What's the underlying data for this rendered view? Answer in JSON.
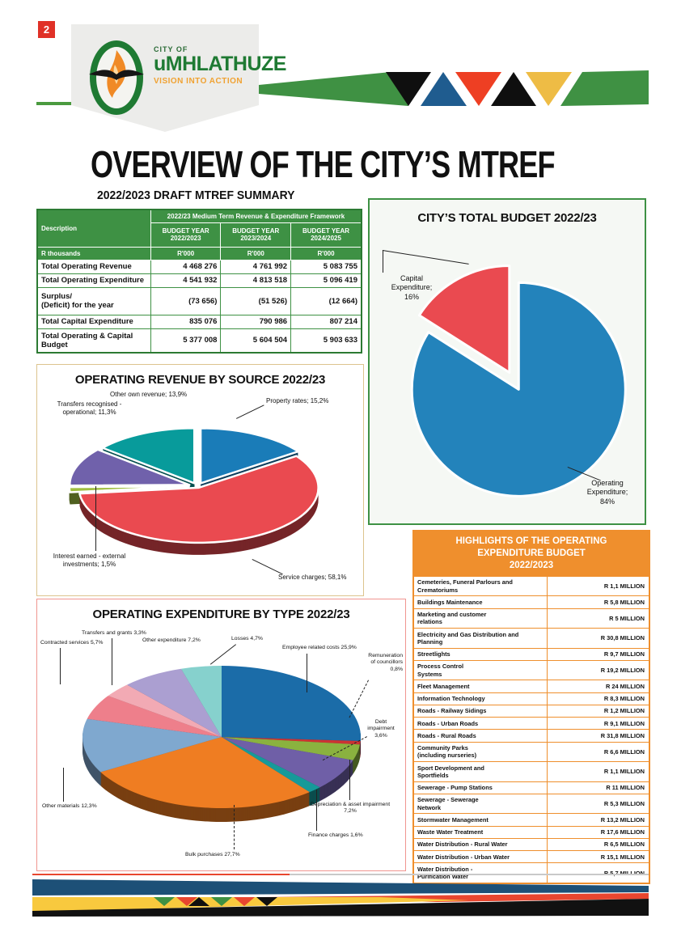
{
  "page": {
    "number": "2"
  },
  "logo": {
    "city_of": "CITY OF",
    "name": "uMHLATHUZE",
    "tagline": "VISION INTO ACTION"
  },
  "title": "OVERVIEW OF THE CITY’S MTREF",
  "summary_table": {
    "title": "2022/2023 DRAFT MTREF SUMMARY",
    "description_label": "Description",
    "unit_row_label": "R thousands",
    "group_header": "2022/23 Medium Term Revenue & Expenditure Framework",
    "columns": [
      {
        "header": "BUDGET YEAR\n2022/2023",
        "unit": "R'000"
      },
      {
        "header": "BUDGET YEAR\n2023/2024",
        "unit": "R'000"
      },
      {
        "header": "BUDGET YEAR\n2024/2025",
        "unit": "R'000"
      }
    ],
    "rows": [
      {
        "label": "Total Operating Revenue",
        "values": [
          "4 468 276",
          "4 761 992",
          "5 083 755"
        ]
      },
      {
        "label": "Total Operating Expenditure",
        "values": [
          "4 541 932",
          "4 813 518",
          "5 096 419"
        ]
      },
      {
        "label": "Surplus/\n(Deficit) for the year",
        "values": [
          "(73 656)",
          "(51 526)",
          "(12 664)"
        ]
      },
      {
        "label": "Total Capital Expenditure",
        "values": [
          "835 076",
          "790 986",
          "807 214"
        ]
      },
      {
        "label": "Total  Operating & Capital\nBudget",
        "values": [
          "5 377 008",
          "5 604 504",
          "5 903 633"
        ]
      }
    ]
  },
  "chart_data": [
    {
      "type": "pie",
      "title": "CITY’S TOTAL BUDGET 2022/23",
      "legend_position": "callout-labels",
      "slices": [
        {
          "name": "Operating Expenditure",
          "value": 84,
          "color": "#2383bb",
          "explode": 0.02,
          "label": "Operating\nExpenditure;\n84%"
        },
        {
          "name": "Capital Expenditure",
          "value": 16,
          "color": "#ea4a50",
          "explode": 0.16,
          "label": "Capital\nExpenditure;\n16%"
        }
      ]
    },
    {
      "type": "pie",
      "title": "OPERATING REVENUE BY SOURCE 2022/23",
      "legend_position": "callout-labels",
      "slices": [
        {
          "name": "Property rates",
          "value": 15.2,
          "color": "#1a7cb8",
          "explode": 0.06,
          "label": "Property rates; 15,2%"
        },
        {
          "name": "Service charges",
          "value": 58.1,
          "color": "#ea4a50",
          "explode": 0.03,
          "label": "Service charges; 58,1%"
        },
        {
          "name": "Interest earned - external investments",
          "value": 1.5,
          "color": "#a0bf3f",
          "explode": 0.07,
          "label": "Interest earned - external\ninvestments; 1,5%"
        },
        {
          "name": "Transfers recognised - operational",
          "value": 11.3,
          "color": "#7061ab",
          "explode": 0.07,
          "label": "Transfers recognised -\noperational; 11,3%"
        },
        {
          "name": "Other own revenue",
          "value": 13.9,
          "color": "#089b9b",
          "explode": 0.06,
          "label": "Other own revenue; 13,9%"
        }
      ]
    },
    {
      "type": "pie",
      "title": "OPERATING EXPENDITURE BY TYPE 2022/23",
      "legend_position": "callout-labels",
      "slices": [
        {
          "name": "Employee related costs",
          "value": 25.9,
          "color": "#1b6ca8",
          "explode": 0,
          "label": "Employee related costs 25,9%"
        },
        {
          "name": "Remuneration of councillors",
          "value": 0.8,
          "color": "#cc3333",
          "explode": 0,
          "label": "Remuneration\nof councillors\n0,8%"
        },
        {
          "name": "Debt impairment",
          "value": 3.6,
          "color": "#8ab23f",
          "explode": 0,
          "label": "Debt\nimpairment\n3,6%"
        },
        {
          "name": "Depreciation & asset impairment",
          "value": 7.2,
          "color": "#6f5fa7",
          "explode": 0,
          "label": "Depreciation & asset impairment\n7,2%"
        },
        {
          "name": "Finance charges",
          "value": 1.6,
          "color": "#169a99",
          "explode": 0,
          "label": "Finance charges 1,6%"
        },
        {
          "name": "Bulk purchases",
          "value": 27.7,
          "color": "#ef7d22",
          "explode": 0,
          "label": "Bulk purchases 27,7%"
        },
        {
          "name": "Other materials",
          "value": 12.3,
          "color": "#7fa8cf",
          "explode": 0,
          "label": "Other materials 12,3%"
        },
        {
          "name": "Contracted services",
          "value": 5.7,
          "color": "#ee7f8b",
          "explode": 0,
          "label": "Contracted services 5,7%"
        },
        {
          "name": "Transfers and grants",
          "value": 3.3,
          "color": "#f2aab4",
          "explode": 0,
          "label": "Transfers and grants 3,3%"
        },
        {
          "name": "Other expenditure",
          "value": 7.2,
          "color": "#ab9fd1",
          "explode": 0,
          "label": "Other expenditure 7,2%"
        },
        {
          "name": "Losses",
          "value": 4.7,
          "color": "#86d1cd",
          "explode": 0,
          "label": "Losses 4,7%"
        }
      ]
    }
  ],
  "highlights_table": {
    "title": "HIGHLIGHTS OF THE OPERATING\nEXPENDITURE BUDGET\n2022/2023",
    "rows": [
      {
        "label": "Cemeteries, Funeral Parlours and\nCrematoriums",
        "value": "R 1,1 MILLION"
      },
      {
        "label": "Buildings Maintenance",
        "value": "R 5,8 MILLION"
      },
      {
        "label": "Marketing and customer\nrelations",
        "value": "R 5 MILLION"
      },
      {
        "label": "Electricity and Gas Distribution and\nPlanning",
        "value": "R 30,8 MILLION"
      },
      {
        "label": "Streetlights",
        "value": "R 9,7 MILLION"
      },
      {
        "label": "Process Control\nSystems",
        "value": "R 19,2 MILLION"
      },
      {
        "label": "Fleet Management",
        "value": "R 24 MILLION"
      },
      {
        "label": "Information Technology",
        "value": "R 8,3 MILLION"
      },
      {
        "label": "Roads - Railway Sidings",
        "value": "R 1,2 MILLION"
      },
      {
        "label": "Roads - Urban Roads",
        "value": "R 9,1 MILLION"
      },
      {
        "label": "Roads - Rural Roads",
        "value": "R 31,8 MILLION"
      },
      {
        "label": "Community Parks\n(including nurseries)",
        "value": "R 6,6 MILLION"
      },
      {
        "label": "Sport Development and\nSportfields",
        "value": "R 1,1 MILLION"
      },
      {
        "label": "Sewerage - Pump Stations",
        "value": "R 11 MILLION"
      },
      {
        "label": "Sewerage - Sewerage\nNetwork",
        "value": "R 5,3 MILLION"
      },
      {
        "label": "Stormwater Management",
        "value": "R 13,2 MILLION"
      },
      {
        "label": "Waste Water Treatment",
        "value": "R 17,6 MILLION"
      },
      {
        "label": "Water Distribution - Rural Water",
        "value": "R 6,5 MILLION"
      },
      {
        "label": "Water Distribution - Urban Water",
        "value": "R 15,1 MILLION"
      },
      {
        "label": "Water Distribution -\nPurification Water",
        "value": "R 5,7 MILLION"
      }
    ]
  },
  "colors": {
    "brand_green": "#3e9144",
    "brand_orange": "#ef8f2d",
    "banner_blue": "#1d5077",
    "banner_yellow": "#eebc45",
    "banner_red": "#e8462f",
    "page_red": "#e03127"
  }
}
